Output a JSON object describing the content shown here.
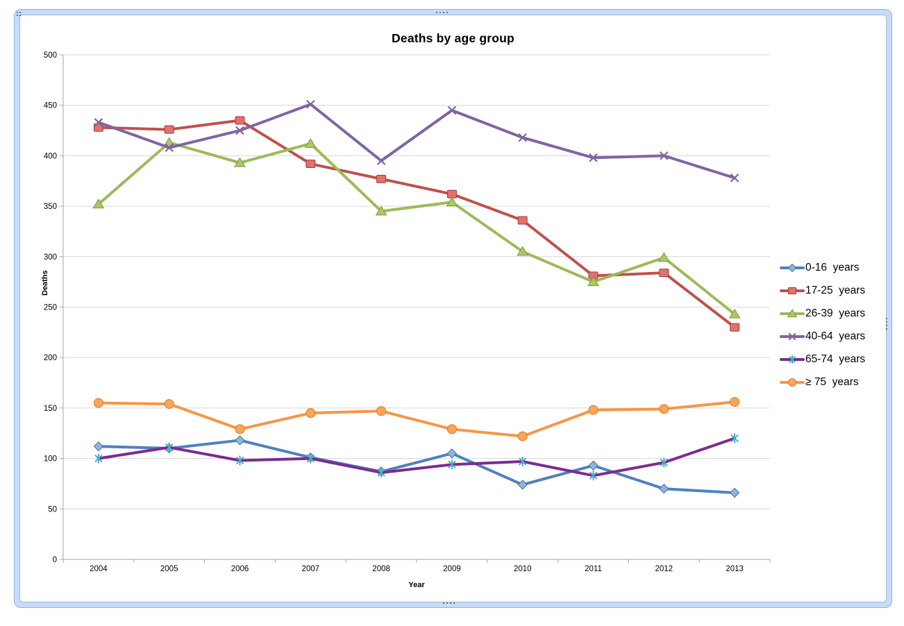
{
  "chart": {
    "frame_accent_color": "#c9dcf5",
    "frame_border_color": "#8db4e2"
  },
  "chart_data": {
    "type": "line",
    "title": "Deaths by age group",
    "xlabel": "Year",
    "ylabel": "Deaths",
    "ylim": [
      0,
      500
    ],
    "yticks": [
      0,
      50,
      100,
      150,
      200,
      250,
      300,
      350,
      400,
      450,
      500
    ],
    "grid": true,
    "legend_position": "right",
    "categories": [
      "2004",
      "2005",
      "2006",
      "2007",
      "2008",
      "2009",
      "2010",
      "2011",
      "2012",
      "2013"
    ],
    "series": [
      {
        "name": "0-16  years",
        "marker": "diamond",
        "color": "#4f81bd",
        "marker_fill": "#8eb4de",
        "marker_stroke": "#44719f",
        "values": [
          112,
          110,
          118,
          101,
          87,
          105,
          74,
          93,
          70,
          66
        ]
      },
      {
        "name": "17-25  years",
        "marker": "square",
        "color": "#c0504d",
        "marker_fill": "#e0716d",
        "marker_stroke": "#9e3a38",
        "values": [
          428,
          426,
          435,
          392,
          377,
          362,
          336,
          281,
          284,
          230
        ]
      },
      {
        "name": "26-39  years",
        "marker": "triangle",
        "color": "#9bbb59",
        "marker_fill": "#abc766",
        "marker_stroke": "#7c9a3f",
        "values": [
          352,
          413,
          393,
          412,
          345,
          354,
          305,
          275,
          299,
          243
        ]
      },
      {
        "name": "40-64  years",
        "marker": "x",
        "color": "#8064a2",
        "marker_stroke": "#8064a2",
        "values": [
          433,
          408,
          425,
          451,
          395,
          445,
          418,
          398,
          400,
          378
        ]
      },
      {
        "name": "65-74  years",
        "marker": "asterisk",
        "color": "#7b2c8e",
        "marker_stroke": "#4bacc6",
        "values": [
          100,
          111,
          98,
          100,
          86,
          94,
          97,
          83,
          96,
          120
        ]
      },
      {
        "name": "≥ 75  years",
        "marker": "circle",
        "color": "#f79646",
        "marker_fill": "#f9a55a",
        "marker_stroke": "#d77b28",
        "values": [
          155,
          154,
          129,
          145,
          147,
          129,
          122,
          148,
          149,
          156
        ]
      }
    ]
  }
}
